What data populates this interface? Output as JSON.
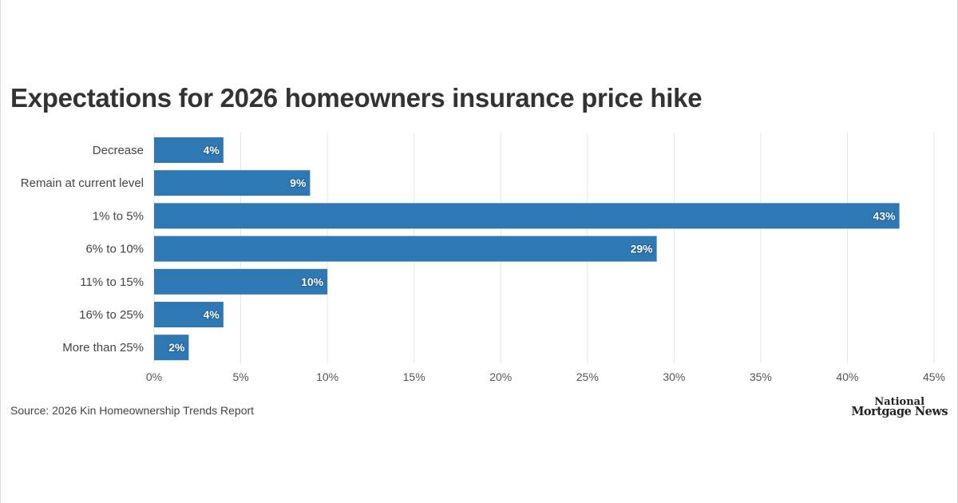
{
  "chart_data": {
    "type": "bar",
    "orientation": "horizontal",
    "title": "Expectations for 2026 homeowners insurance price hike",
    "categories": [
      "Decrease",
      "Remain at current level",
      "1% to 5%",
      "6% to 10%",
      "11% to 15%",
      "16% to 25%",
      "More than 25%"
    ],
    "values": [
      4,
      9,
      43,
      29,
      10,
      4,
      2
    ],
    "data_labels": [
      "4%",
      "9%",
      "43%",
      "29%",
      "10%",
      "4%",
      "2%"
    ],
    "xlim": [
      0,
      45
    ],
    "xticks": [
      0,
      5,
      10,
      15,
      20,
      25,
      30,
      35,
      40,
      45
    ],
    "xtick_labels": [
      "0%",
      "5%",
      "10%",
      "15%",
      "20%",
      "25%",
      "30%",
      "35%",
      "40%",
      "45%"
    ],
    "grid": "vertical",
    "bar_color": "#2e78b4",
    "xlabel": "",
    "ylabel": ""
  },
  "source": "Source: 2026 Kin Homeownership Trends Report",
  "logo": {
    "line1": "National",
    "line2": "Mortgage News"
  }
}
